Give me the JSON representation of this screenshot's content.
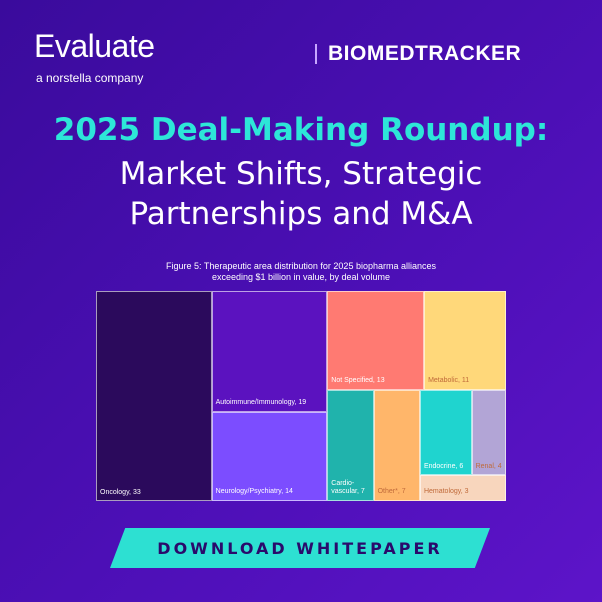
{
  "header": {
    "logo": "Evaluate",
    "tagline": "a norstella company",
    "partner": "BIOMEDTRACKER"
  },
  "headline": [
    "2025 Deal-Making Roundup:",
    "Market Shifts, Strategic",
    "Partnerships and M&A"
  ],
  "chart_data": {
    "type": "treemap",
    "title": "Figure 5: Therapeutic area distribution for 2025 biopharma alliances exceeding $1 billion in value, by deal volume",
    "labels": [
      "Oncology, 33",
      "Autoimmune/Immunology, 19",
      "Neurology/Psychiatry, 14",
      "Not Specified, 13",
      "Metabolic, 11",
      "Cardio-vascular, 7",
      "Other*, 7",
      "Endocrine, 6",
      "Renal, 4",
      "Hematology, 3"
    ],
    "values": [
      33,
      19,
      14,
      13,
      11,
      7,
      7,
      6,
      4,
      3
    ],
    "colors": [
      "#2b0a5c",
      "#5b12bf",
      "#7c4dff",
      "#ff7a72",
      "#ffd87a",
      "#20b3ac",
      "#ffb66a",
      "#1fd4cf",
      "#b2a5d6",
      "#f8d6bd"
    ]
  },
  "button": "DOWNLOAD WHITEPAPER"
}
